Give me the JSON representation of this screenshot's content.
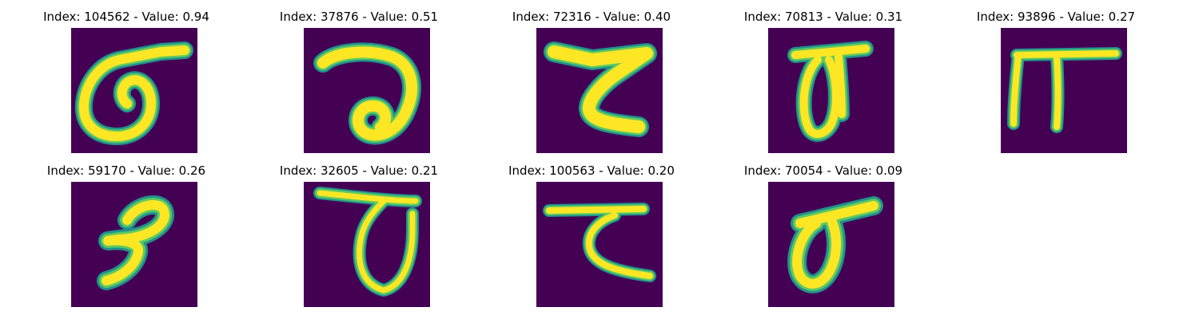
{
  "colors": {
    "background": "#440154",
    "stroke_outer": "#21918c",
    "stroke_mid": "#5ec962",
    "stroke_inner": "#fde725"
  },
  "samples": [
    {
      "title": "Index: 104562 - Value: 0.94",
      "glyph": "glyph-0"
    },
    {
      "title": "Index: 37876 - Value: 0.51",
      "glyph": "glyph-1"
    },
    {
      "title": "Index: 72316 - Value: 0.40",
      "glyph": "glyph-2"
    },
    {
      "title": "Index: 70813 - Value: 0.31",
      "glyph": "glyph-3"
    },
    {
      "title": "Index: 93896 - Value: 0.27",
      "glyph": "glyph-4"
    },
    {
      "title": "Index: 59170 - Value: 0.26",
      "glyph": "glyph-5"
    },
    {
      "title": "Index: 32605 - Value: 0.21",
      "glyph": "glyph-6"
    },
    {
      "title": "Index: 100563 - Value: 0.20",
      "glyph": "glyph-7"
    },
    {
      "title": "Index: 70054 - Value: 0.09",
      "glyph": "glyph-8"
    }
  ]
}
